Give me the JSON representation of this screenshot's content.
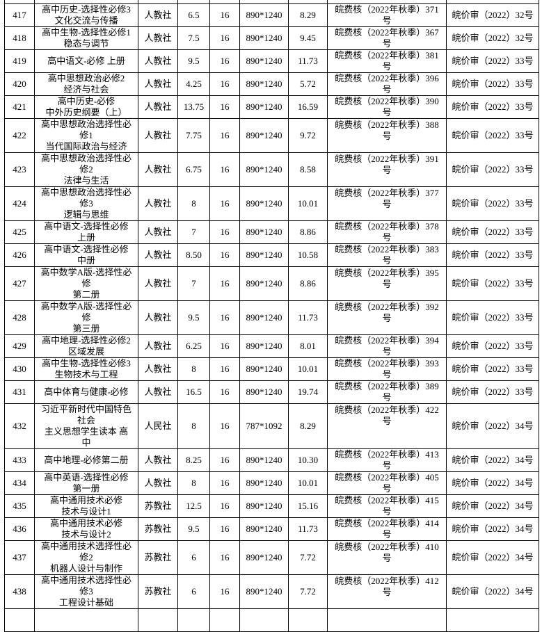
{
  "table": {
    "rows": [
      {
        "no": "417",
        "name": "高中历史-选择性必修3\n文化交流与传播",
        "publisher": "人教社",
        "sheets": "6.5",
        "format": "16",
        "size": "890*1240",
        "price": "8.29",
        "approval": "皖费核（2022年秋季）371\n号",
        "review": "皖价审（2022）32号",
        "lines": 2
      },
      {
        "no": "418",
        "name": "高中生物-选择性必修1\n稳态与调节",
        "publisher": "人教社",
        "sheets": "7.5",
        "format": "16",
        "size": "890*1240",
        "price": "9.45",
        "approval": "皖费核（2022年秋季）367\n号",
        "review": "皖价审（2022）32号",
        "lines": 2
      },
      {
        "no": "419",
        "name": "高中语文-必修  上册",
        "publisher": "人教社",
        "sheets": "9.5",
        "format": "16",
        "size": "890*1240",
        "price": "11.73",
        "approval": "皖费核（2022年秋季）381\n号",
        "review": "皖价审（2022）33号",
        "lines": 2
      },
      {
        "no": "420",
        "name": "高中思想政治必修2\n经济与社会",
        "publisher": "人教社",
        "sheets": "4.25",
        "format": "16",
        "size": "890*1240",
        "price": "5.72",
        "approval": "皖费核（2022年秋季）396\n号",
        "review": "皖价审（2022）33号",
        "lines": 2
      },
      {
        "no": "421",
        "name": "高中历史-必修\n中外历史纲要（上）",
        "publisher": "人教社",
        "sheets": "13.75",
        "format": "16",
        "size": "890*1240",
        "price": "16.59",
        "approval": "皖费核（2022年秋季）390\n号",
        "review": "皖价审（2022）33号",
        "lines": 2
      },
      {
        "no": "422",
        "name": "高中思想政治选择性必\n修1\n当代国际政治与经济",
        "publisher": "人教社",
        "sheets": "7.75",
        "format": "16",
        "size": "890*1240",
        "price": "9.72",
        "approval": "皖费核（2022年秋季）388\n号",
        "review": "皖价审（2022）33号",
        "lines": 3
      },
      {
        "no": "423",
        "name": "高中思想政治选择性必\n修2\n法律与生活",
        "publisher": "人教社",
        "sheets": "6.75",
        "format": "16",
        "size": "890*1240",
        "price": "8.58",
        "approval": "皖费核（2022年秋季）391\n号",
        "review": "皖价审（2022）33号",
        "lines": 3
      },
      {
        "no": "424",
        "name": "高中思想政治选择性必\n修3\n逻辑与思维",
        "publisher": "人教社",
        "sheets": "8",
        "format": "16",
        "size": "890*1240",
        "price": "10.01",
        "approval": "皖费核（2022年秋季）377\n号",
        "review": "皖价审（2022）33号",
        "lines": 3
      },
      {
        "no": "425",
        "name": "高中语文-选择性必修\n上册",
        "publisher": "人教社",
        "sheets": "7",
        "format": "16",
        "size": "890*1240",
        "price": "8.86",
        "approval": "皖费核（2022年秋季）378\n号",
        "review": "皖价审（2022）33号",
        "lines": 2
      },
      {
        "no": "426",
        "name": "高中语文-选择性必修\n中册",
        "publisher": "人教社",
        "sheets": "8.50",
        "format": "16",
        "size": "890*1240",
        "price": "10.58",
        "approval": "皖费核（2022年秋季）383\n号",
        "review": "皖价审（2022）33号",
        "lines": 2
      },
      {
        "no": "427",
        "name": "高中数学A版-选择性必\n修\n第二册",
        "publisher": "人教社",
        "sheets": "7",
        "format": "16",
        "size": "890*1240",
        "price": "8.86",
        "approval": "皖费核（2022年秋季）395\n号",
        "review": "皖价审（2022）33号",
        "lines": 3
      },
      {
        "no": "428",
        "name": "高中数学A版-选择性必\n修\n第三册",
        "publisher": "人教社",
        "sheets": "9.5",
        "format": "16",
        "size": "890*1240",
        "price": "11.73",
        "approval": "皖费核（2022年秋季）392\n号",
        "review": "皖价审（2022）33号",
        "lines": 3
      },
      {
        "no": "429",
        "name": "高中地理-选择性必修2\n区域发展",
        "publisher": "人教社",
        "sheets": "6.25",
        "format": "16",
        "size": "890*1240",
        "price": "8.01",
        "approval": "皖费核（2022年秋季）394\n号",
        "review": "皖价审（2022）33号",
        "lines": 2
      },
      {
        "no": "430",
        "name": "高中生物-选择性必修3\n生物技术与工程",
        "publisher": "人教社",
        "sheets": "8",
        "format": "16",
        "size": "890*1240",
        "price": "10.01",
        "approval": "皖费核（2022年秋季）393\n号",
        "review": "皖价审（2022）33号",
        "lines": 2
      },
      {
        "no": "431",
        "name": "高中体育与健康-必修",
        "publisher": "人教社",
        "sheets": "16.5",
        "format": "16",
        "size": "890*1240",
        "price": "19.74",
        "approval": "皖费核（2022年秋季）389\n号",
        "review": "皖价审（2022）33号",
        "lines": 2
      },
      {
        "no": "432",
        "name": "习近平新时代中国特色\n社会\n主义思想学生读本 高\n中",
        "publisher": "人民社",
        "sheets": "8",
        "format": "16",
        "size": "787*1092",
        "price": "8.29",
        "approval": "皖费核（2022年秋季）422\n号",
        "review": "皖价审（2022）34号",
        "lines": 4
      },
      {
        "no": "433",
        "name": "高中地理-必修第二册",
        "publisher": "人教社",
        "sheets": "8.25",
        "format": "16",
        "size": "890*1240",
        "price": "10.30",
        "approval": "皖费核（2022年秋季）413\n号",
        "review": "皖价审（2022）34号",
        "lines": 2
      },
      {
        "no": "434",
        "name": "高中英语-选择性必修\n第一册",
        "publisher": "人教社",
        "sheets": "8",
        "format": "16",
        "size": "890*1240",
        "price": "10.01",
        "approval": "皖费核（2022年秋季）405\n号",
        "review": "皖价审（2022）34号",
        "lines": 2
      },
      {
        "no": "435",
        "name": "高中通用技术必修\n技术与设计1",
        "publisher": "苏教社",
        "sheets": "12.5",
        "format": "16",
        "size": "890*1240",
        "price": "15.16",
        "approval": "皖费核（2022年秋季）415\n号",
        "review": "皖价审（2022）34号",
        "lines": 2
      },
      {
        "no": "436",
        "name": "高中通用技术必修\n技术与设计2",
        "publisher": "苏教社",
        "sheets": "9.5",
        "format": "16",
        "size": "890*1240",
        "price": "11.73",
        "approval": "皖费核（2022年秋季）414\n号",
        "review": "皖价审（2022）34号",
        "lines": 2
      },
      {
        "no": "437",
        "name": "高中通用技术选择性必\n修2\n机器人设计与制作",
        "publisher": "苏教社",
        "sheets": "6",
        "format": "16",
        "size": "890*1240",
        "price": "7.72",
        "approval": "皖费核（2022年秋季）410\n号",
        "review": "皖价审（2022）34号",
        "lines": 3
      },
      {
        "no": "438",
        "name": "高中通用技术选择性必\n修3\n工程设计基础",
        "publisher": "苏教社",
        "sheets": "6",
        "format": "16",
        "size": "890*1240",
        "price": "7.72",
        "approval": "皖费核（2022年秋季）412\n号",
        "review": "皖价审（2022）34号",
        "lines": 3
      }
    ]
  }
}
